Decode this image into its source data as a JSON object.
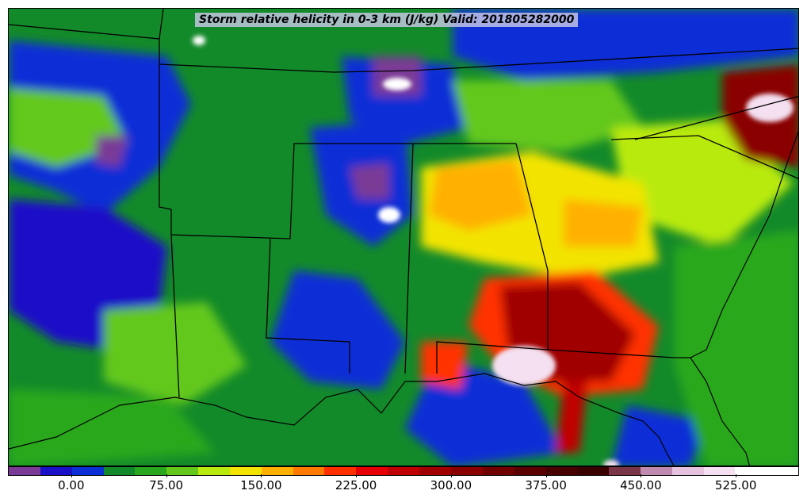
{
  "title": "Storm relative helicity in 0-3 km (J/kg) Valid: 201805282000",
  "colorbar": {
    "colors": [
      "#7a3a96",
      "#1a10c8",
      "#0a2fd6",
      "#138a2a",
      "#29a81e",
      "#63c81b",
      "#b9ea0e",
      "#f2e400",
      "#ffb000",
      "#ff7a00",
      "#ff3000",
      "#e60000",
      "#c00000",
      "#a00000",
      "#8a0000",
      "#700000",
      "#5a0000",
      "#480000",
      "#3a0000",
      "#7a3548",
      "#c08ab0",
      "#e6c2df",
      "#f4e0f0",
      "#ffffff",
      "#ffffff"
    ],
    "ticks": [
      {
        "label": "0.00",
        "frac": 0.08
      },
      {
        "label": "75.00",
        "frac": 0.2
      },
      {
        "label": "150.00",
        "frac": 0.32
      },
      {
        "label": "225.00",
        "frac": 0.44
      },
      {
        "label": "300.00",
        "frac": 0.56
      },
      {
        "label": "375.00",
        "frac": 0.68
      },
      {
        "label": "450.00",
        "frac": 0.8
      },
      {
        "label": "525.00",
        "frac": 0.92
      }
    ]
  }
}
